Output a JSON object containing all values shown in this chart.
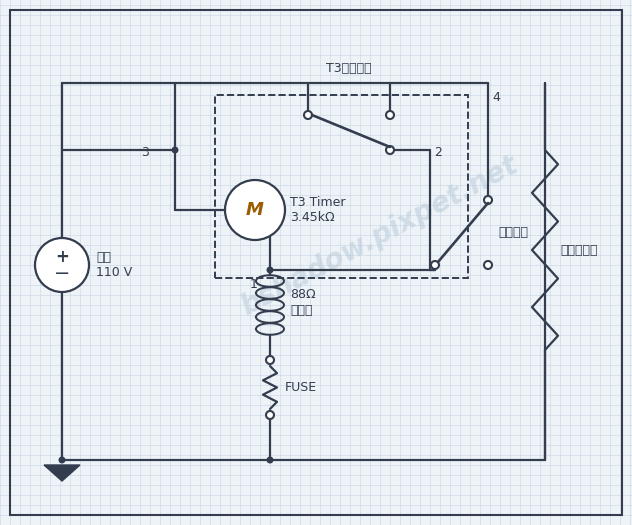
{
  "bg_color": "#eef3f8",
  "grid_color": "#c5d5e5",
  "line_color": "#333d4d",
  "line_width": 1.6,
  "labels": {
    "power_source": "電源\n110 V",
    "motor": "M",
    "timer_label": "T3 Timer\n3.45kΩ",
    "switch_label": "T3切換開關",
    "temp_switch": "溫度開關",
    "heater": "88Ω\n電熱絲",
    "fuse": "FUSE",
    "compressor": "壓縮機負載",
    "node1": "1",
    "node2": "2",
    "node3": "3",
    "node4": "4"
  },
  "watermark": "bshadow.pixpet.net"
}
